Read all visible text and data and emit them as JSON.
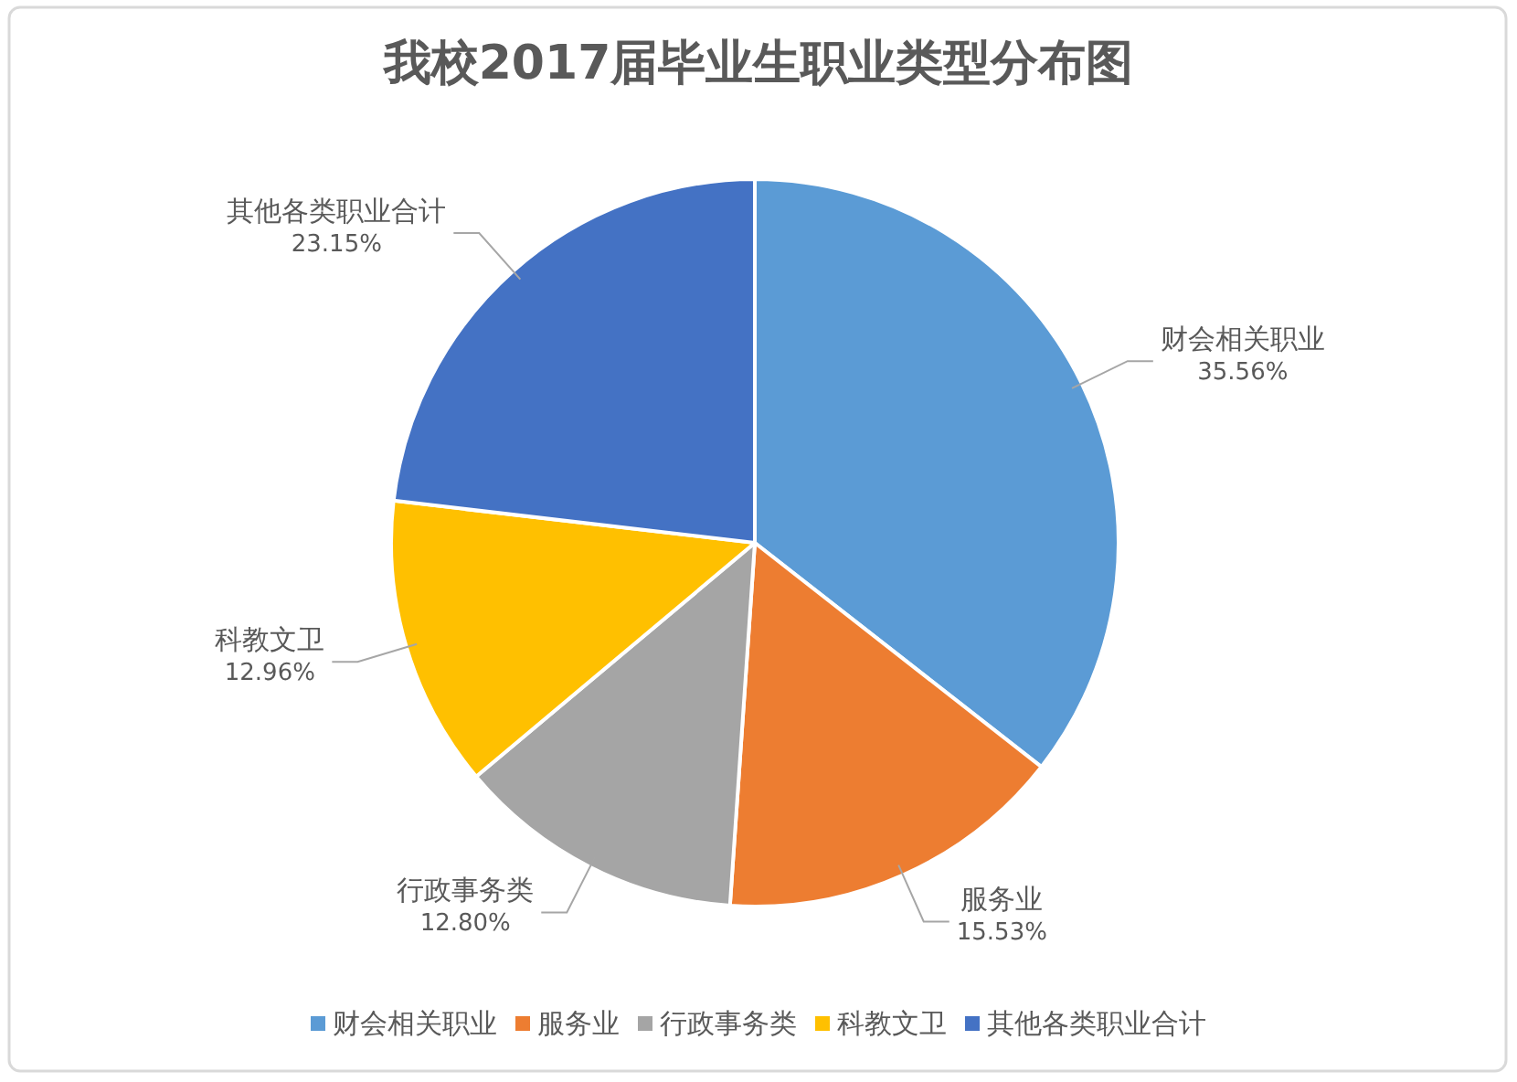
{
  "chart_data": {
    "type": "pie",
    "title": "我校2017届毕业生职业类型分布图",
    "categories": [
      "财会相关职业",
      "服务业",
      "行政事务类",
      "科教文卫",
      "其他各类职业合计"
    ],
    "values": [
      35.56,
      15.53,
      12.8,
      12.96,
      23.15
    ],
    "value_labels": [
      "35.56%",
      "15.53%",
      "12.80%",
      "12.96%",
      "23.15%"
    ],
    "colors": [
      "#5b9bd5",
      "#ed7d31",
      "#a5a5a5",
      "#ffc000",
      "#4472c4"
    ],
    "legend": "bottom"
  }
}
